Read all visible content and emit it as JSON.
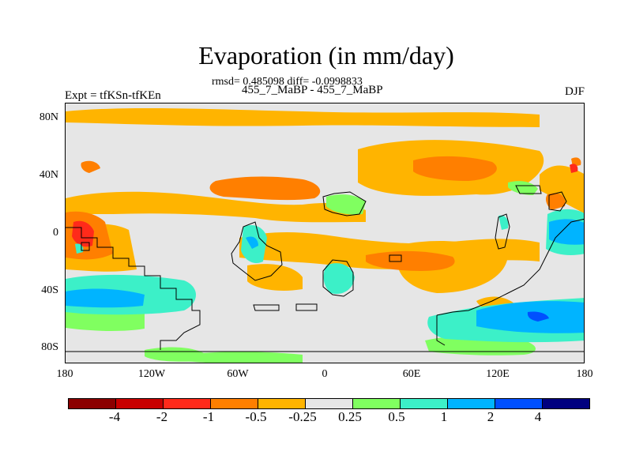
{
  "title": "Evaporation (in mm/day)",
  "rmsd_line": "rmsd= 0.485098 diff= -0.0998833",
  "subtitle": "455_7_MaBP - 455_7_MaBP",
  "left_label": "Expt = tfKSn-tfKEn",
  "right_label": "DJF",
  "map": {
    "y_ticks": [
      "80N",
      "40N",
      "0",
      "40S",
      "80S"
    ],
    "x_ticks": [
      "180",
      "120W",
      "60W",
      "0",
      "60E",
      "120E",
      "180"
    ],
    "background_color": "#e6e6e6"
  },
  "colorbar": {
    "colors": [
      "#8b0000",
      "#c80000",
      "#ff2a1a",
      "#ff7f00",
      "#ffb400",
      "#e6e6e6",
      "#80ff60",
      "#3cf0c8",
      "#00b4ff",
      "#0050ff",
      "#00007f"
    ],
    "labels": [
      "-4",
      "-2",
      "-1",
      "-0.5",
      "-0.25",
      "0.25",
      "0.5",
      "1",
      "2",
      "4"
    ]
  }
}
